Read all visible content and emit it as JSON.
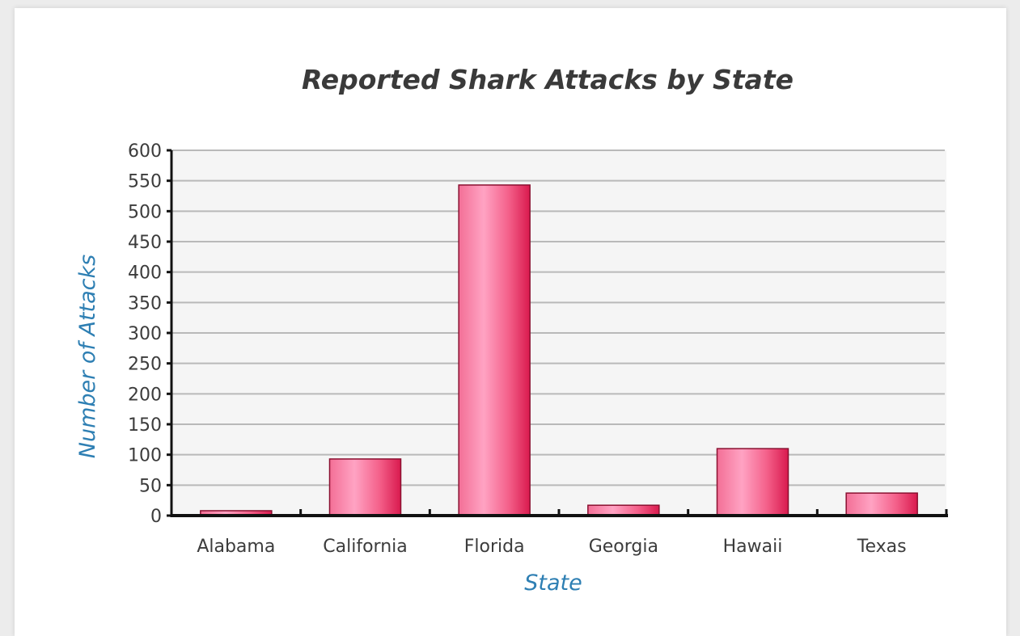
{
  "chart_data": {
    "type": "bar",
    "title": "Reported Shark Attacks by State",
    "xlabel": "State",
    "ylabel": "Number of Attacks",
    "categories": [
      "Alabama",
      "California",
      "Florida",
      "Georgia",
      "Hawaii",
      "Texas"
    ],
    "values": [
      8,
      93,
      543,
      17,
      110,
      37
    ],
    "ylim": [
      0,
      600
    ],
    "yticks": [
      0,
      50,
      100,
      150,
      200,
      250,
      300,
      350,
      400,
      450,
      500,
      550,
      600
    ],
    "grid": true,
    "colors": {
      "bar_light": "#ffa3c3",
      "bar_mid": "#f4608a",
      "bar_dark": "#d91a4e",
      "bar_edge": "#8a1030",
      "gridline": "#b9b9b9",
      "plot_bg": "#f5f5f5",
      "axis_label": "#2e7fb3"
    }
  }
}
